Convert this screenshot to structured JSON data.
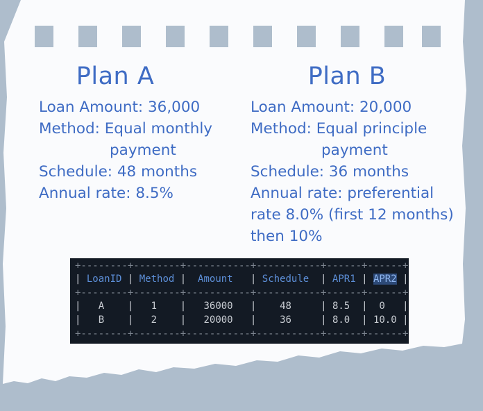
{
  "plans": [
    {
      "title": "Plan A",
      "lines": [
        "Loan Amount: 36,000",
        "Method: Equal monthly",
        "payment",
        "Schedule: 48 months",
        "Annual rate: 8.5%"
      ]
    },
    {
      "title": "Plan B",
      "lines": [
        "Loan Amount: 20,000",
        "Method: Equal principle",
        "payment",
        "Schedule: 36 months",
        "Annual rate: preferential",
        "rate 8.0% (first 12 months)",
        "then 10%"
      ]
    }
  ],
  "table": {
    "border": "+--------+--------+-----------+-----------+------+------+",
    "columns": [
      "LoanID",
      "Method",
      "Amount",
      "Schedule",
      "APR1",
      "APR2"
    ],
    "selected_column": "APR2",
    "rows": [
      [
        "A",
        "1",
        "36000",
        "48",
        "8.5",
        "0"
      ],
      [
        "B",
        "2",
        "20000",
        "36",
        "8.0",
        "10.0"
      ]
    ]
  },
  "colors": {
    "background": "#aebdcc",
    "paper": "#fafbfd",
    "text": "#3f6cc4",
    "terminal_bg": "#131a24",
    "header_text": "#5d8fd8"
  }
}
